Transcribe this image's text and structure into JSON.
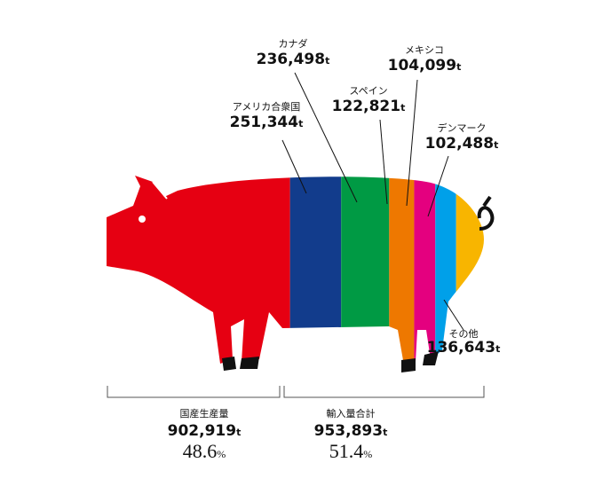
{
  "chart_data": {
    "type": "pig-bar",
    "unit": "t",
    "percent_unit": "%",
    "categories": [
      "アメリカ合衆国",
      "カナダ",
      "スペイン",
      "メキシコ",
      "デンマーク",
      "その他"
    ],
    "values": [
      251344,
      236498,
      122821,
      104099,
      102488,
      136643
    ],
    "value_labels": [
      "251,344",
      "236,498",
      "122,821",
      "104,099",
      "102,488",
      "136,643"
    ],
    "colors": [
      "#123c8c",
      "#009a44",
      "#ee7800",
      "#e4007f",
      "#00a0e9",
      "#f8b500"
    ],
    "groups": [
      {
        "name": "国産生産量",
        "color": "#e60012",
        "value": 902919,
        "value_label": "902,919",
        "share": 48.6
      },
      {
        "name": "輸入量合計",
        "value": 953893,
        "value_label": "953,893",
        "share": 51.4
      }
    ]
  }
}
